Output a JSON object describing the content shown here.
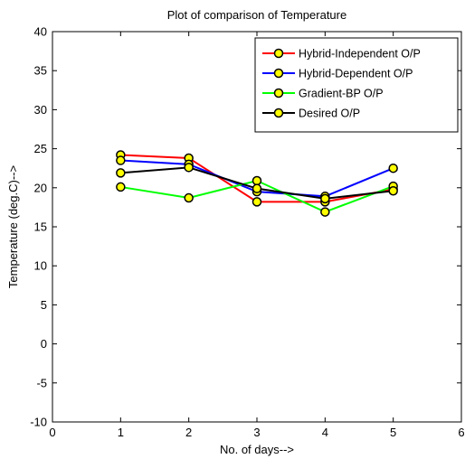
{
  "chart_data": {
    "type": "line",
    "title": "Plot of comparison of Temperature",
    "xlabel": "No. of days-->",
    "ylabel": "Temperature (deg.C)-->",
    "xlim": [
      0,
      6
    ],
    "ylim": [
      -10,
      40
    ],
    "xticks": [
      0,
      1,
      2,
      3,
      4,
      5,
      6
    ],
    "yticks": [
      -10,
      -5,
      0,
      5,
      10,
      15,
      20,
      25,
      30,
      35,
      40
    ],
    "grid": false,
    "legend_position": "top-right",
    "x": [
      1,
      2,
      3,
      4,
      5
    ],
    "series": [
      {
        "name": "Hybrid-Independent O/P",
        "color": "#ff0000",
        "values": [
          24.2,
          23.8,
          18.2,
          18.2,
          19.8
        ]
      },
      {
        "name": "Hybrid-Dependent O/P",
        "color": "#0000ff",
        "values": [
          23.5,
          23.0,
          19.5,
          18.9,
          22.5
        ]
      },
      {
        "name": "Gradient-BP O/P",
        "color": "#00ff00",
        "values": [
          20.1,
          18.7,
          20.9,
          16.9,
          20.2
        ]
      },
      {
        "name": "Desired O/P",
        "color": "#000000",
        "values": [
          21.9,
          22.6,
          19.9,
          18.6,
          19.6
        ]
      }
    ],
    "marker": {
      "shape": "circle",
      "fill": "#ffff00",
      "edge": "#000000"
    }
  }
}
